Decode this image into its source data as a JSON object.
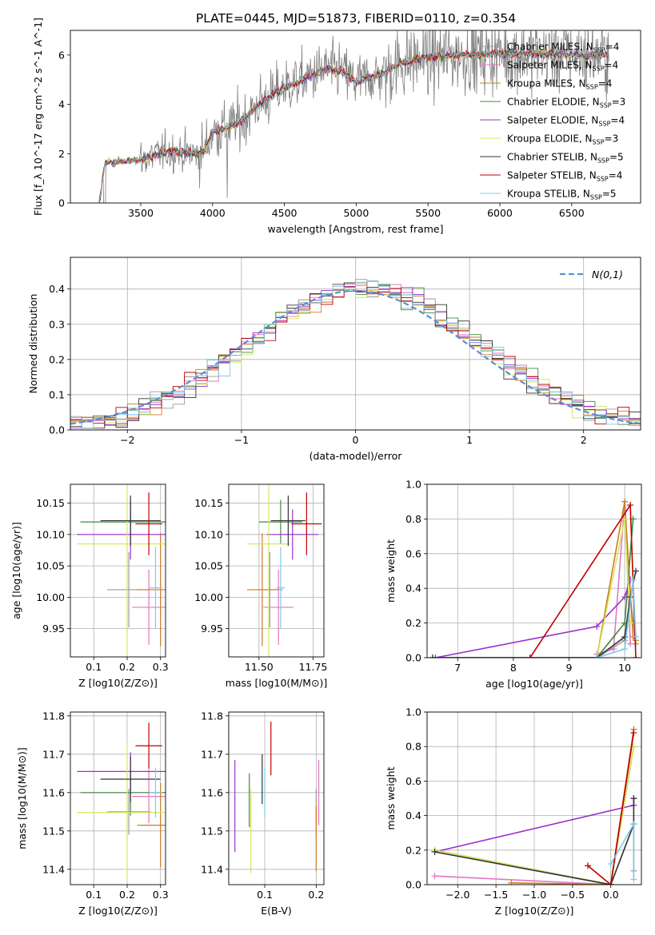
{
  "figure": {
    "title": "PLATE=0445, MJD=51873, FIBERID=0110, z=0.354"
  },
  "colors": {
    "grid": "#b0b0b0",
    "observed_spectrum": "#808080",
    "normal_curve": "#5b8ed6"
  },
  "models": [
    {
      "name": "Chabrier MILES",
      "nssp": "4",
      "color": "#9a9a9a"
    },
    {
      "name": "Salpeter MILES",
      "nssp": "4",
      "color": "#e377c2"
    },
    {
      "name": "Kroupa MILES",
      "nssp": "4",
      "color": "#d07a1e"
    },
    {
      "name": "Chabrier ELODIE",
      "nssp": "3",
      "color": "#3d8a3d"
    },
    {
      "name": "Salpeter ELODIE",
      "nssp": "4",
      "color": "#9b30c8"
    },
    {
      "name": "Kroupa ELODIE",
      "nssp": "3",
      "color": "#d4e85a"
    },
    {
      "name": "Chabrier STELIB",
      "nssp": "5",
      "color": "#333333"
    },
    {
      "name": "Salpeter STELIB",
      "nssp": "4",
      "color": "#c00000"
    },
    {
      "name": "Kroupa STELIB",
      "nssp": "5",
      "color": "#7fc8e8"
    }
  ],
  "chart_data": [
    {
      "id": "spectrum",
      "type": "line",
      "xlabel": "wavelength [Angstrom, rest frame]",
      "ylabel": "Flux [f_λ 10^-17 erg cm^-2 s^-1 A^-1]",
      "xlim": [
        3010,
        6980
      ],
      "ylim": [
        0,
        7
      ],
      "xticks": [
        "3500",
        "4000",
        "4500",
        "5000",
        "5500",
        "6000",
        "6500"
      ],
      "yticks": [
        "0",
        "2",
        "4",
        "6"
      ],
      "grid": false,
      "legend": "top-right",
      "continuum_anchors": {
        "x": [
          3210,
          3250,
          3300,
          3400,
          3500,
          3600,
          3700,
          3800,
          3900,
          3950,
          4000,
          4100,
          4200,
          4300,
          4400,
          4500,
          4600,
          4700,
          4800,
          4900,
          5000,
          5100,
          5200,
          5300,
          5400,
          5500,
          5600,
          5700,
          5800,
          5900,
          6000,
          6200,
          6400,
          6600,
          6750
        ],
        "y": [
          0.0,
          1.6,
          1.65,
          1.7,
          1.75,
          1.95,
          2.1,
          2.05,
          2.0,
          2.2,
          2.9,
          3.05,
          3.3,
          3.9,
          4.3,
          4.7,
          4.9,
          5.2,
          5.45,
          5.35,
          4.9,
          5.1,
          5.3,
          5.65,
          5.8,
          5.9,
          5.95,
          6.0,
          6.0,
          6.05,
          6.05,
          6.05,
          6.05,
          6.0,
          6.0
        ]
      }
    },
    {
      "id": "residuals",
      "type": "line",
      "xlabel": "(data-model)/error",
      "ylabel": "Normed distribution",
      "xlim": [
        -2.5,
        2.5
      ],
      "ylim": [
        0,
        0.49
      ],
      "xticks": [
        "−2",
        "−1",
        "0",
        "1",
        "2"
      ],
      "yticks": [
        "0.0",
        "0.1",
        "0.2",
        "0.3",
        "0.4"
      ],
      "grid": true,
      "legend": "top-right",
      "legend_label": "N(0,1)",
      "series": [
        {
          "name": "N(0,1)",
          "mean": 0,
          "sigma": 1,
          "style": "dashed"
        }
      ],
      "bin_width": 0.1
    },
    {
      "id": "age_vs_Z",
      "type": "scatter",
      "xlabel": "Z [log10(Z/Z⊙)]",
      "ylabel": "age [log10(age/yr)]",
      "xlim": [
        0.03,
        0.315
      ],
      "ylim": [
        9.905,
        10.18
      ],
      "xticks": [
        "0.1",
        "0.2",
        "0.3"
      ],
      "yticks": [
        "9.95",
        "10.00",
        "10.05",
        "10.10",
        "10.15"
      ],
      "grid": true,
      "points": [
        {
          "model": "Chabrier MILES",
          "x": 0.205,
          "y": 10.012,
          "xerr": 0.065,
          "yerr": 0.06
        },
        {
          "model": "Salpeter MILES",
          "x": 0.265,
          "y": 9.984,
          "xerr": 0.05,
          "yerr": 0.06
        },
        {
          "model": "Kroupa MILES",
          "x": 0.3,
          "y": 10.012,
          "xerr": 0.07,
          "yerr": 0.09
        },
        {
          "model": "Chabrier ELODIE",
          "x": 0.21,
          "y": 10.12,
          "xerr": 0.15,
          "yerr": 0.035
        },
        {
          "model": "Salpeter ELODIE",
          "x": 0.21,
          "y": 10.1,
          "xerr": 0.16,
          "yerr": 0.04
        },
        {
          "model": "Kroupa ELODIE",
          "x": 0.2,
          "y": 10.085,
          "xerr": 0.15,
          "yerr": 0.18
        },
        {
          "model": "Chabrier STELIB",
          "x": 0.21,
          "y": 10.122,
          "xerr": 0.09,
          "yerr": 0.04
        },
        {
          "model": "Salpeter STELIB",
          "x": 0.265,
          "y": 10.117,
          "xerr": 0.04,
          "yerr": 0.05
        },
        {
          "model": "Kroupa STELIB",
          "x": 0.285,
          "y": 10.015,
          "xerr": 0.02,
          "yerr": 0.065
        }
      ]
    },
    {
      "id": "age_vs_mass",
      "type": "scatter",
      "xlabel": "mass [log10(M/M⊙)]",
      "ylabel": "",
      "xlim": [
        11.36,
        11.8
      ],
      "ylim": [
        9.905,
        10.18
      ],
      "xticks": [
        "11.50",
        "11.75"
      ],
      "yticks": [
        "9.95",
        "10.00",
        "10.05",
        "10.10",
        "10.15"
      ],
      "grid": true,
      "points": [
        {
          "model": "Chabrier MILES",
          "x": 11.55,
          "y": 10.012,
          "xerr": 0.06,
          "yerr": 0.06
        },
        {
          "model": "Salpeter MILES",
          "x": 11.59,
          "y": 9.984,
          "xerr": 0.07,
          "yerr": 0.06
        },
        {
          "model": "Kroupa MILES",
          "x": 11.515,
          "y": 10.012,
          "xerr": 0.07,
          "yerr": 0.09
        },
        {
          "model": "Chabrier ELODIE",
          "x": 11.6,
          "y": 10.12,
          "xerr": 0.1,
          "yerr": 0.035
        },
        {
          "model": "Salpeter ELODIE",
          "x": 11.655,
          "y": 10.1,
          "xerr": 0.12,
          "yerr": 0.04
        },
        {
          "model": "Kroupa ELODIE",
          "x": 11.545,
          "y": 10.085,
          "xerr": 0.1,
          "yerr": 0.18
        },
        {
          "model": "Chabrier STELIB",
          "x": 11.635,
          "y": 10.122,
          "xerr": 0.08,
          "yerr": 0.04
        },
        {
          "model": "Salpeter STELIB",
          "x": 11.72,
          "y": 10.117,
          "xerr": 0.07,
          "yerr": 0.05
        },
        {
          "model": "Kroupa STELIB",
          "x": 11.6,
          "y": 10.015,
          "xerr": 0.02,
          "yerr": 0.065
        }
      ]
    },
    {
      "id": "weight_vs_age",
      "type": "line",
      "xlabel": "age [log10(age/yr)]",
      "ylabel": "mass weight",
      "xlim": [
        6.45,
        10.3
      ],
      "ylim": [
        0,
        1
      ],
      "xticks": [
        "7",
        "8",
        "9",
        "10"
      ],
      "yticks": [
        "0.0",
        "0.2",
        "0.4",
        "0.6",
        "0.8",
        "1.0"
      ],
      "grid": true,
      "series": [
        {
          "name": "Chabrier MILES",
          "x": [
            9.5,
            10.0,
            10.1,
            10.2
          ],
          "y": [
            0.0,
            0.1,
            0.35,
            0.08
          ]
        },
        {
          "name": "Salpeter MILES",
          "x": [
            9.5,
            9.8,
            10.0,
            10.1
          ],
          "y": [
            0.02,
            0.05,
            0.9,
            0.08
          ]
        },
        {
          "name": "Kroupa MILES",
          "x": [
            9.5,
            10.0,
            10.15,
            10.2
          ],
          "y": [
            0.0,
            0.9,
            0.12,
            0.1
          ]
        },
        {
          "name": "Chabrier ELODIE",
          "x": [
            6.55,
            9.5,
            10.0,
            10.15
          ],
          "y": [
            0.0,
            0.0,
            0.2,
            0.8
          ]
        },
        {
          "name": "Salpeter ELODIE",
          "x": [
            6.6,
            9.5,
            10.0,
            10.1
          ],
          "y": [
            0.0,
            0.18,
            0.35,
            0.45
          ]
        },
        {
          "name": "Kroupa ELODIE",
          "x": [
            9.5,
            10.0,
            10.1
          ],
          "y": [
            0.0,
            0.8,
            0.2
          ]
        },
        {
          "name": "Chabrier STELIB",
          "x": [
            6.55,
            9.5,
            10.0,
            10.1,
            10.2
          ],
          "y": [
            0.0,
            0.0,
            0.12,
            0.35,
            0.5
          ]
        },
        {
          "name": "Salpeter STELIB",
          "x": [
            8.3,
            10.1,
            10.2
          ],
          "y": [
            0.0,
            0.88,
            0.0
          ]
        },
        {
          "name": "Kroupa STELIB",
          "x": [
            9.5,
            10.0,
            10.15,
            10.2
          ],
          "y": [
            0.0,
            0.05,
            0.45,
            0.12
          ]
        }
      ]
    },
    {
      "id": "mass_vs_Z",
      "type": "scatter",
      "xlabel": "Z [log10(Z/Z⊙)]",
      "ylabel": "mass [log10(M/M⊙)]",
      "xlim": [
        0.03,
        0.315
      ],
      "ylim": [
        11.36,
        11.81
      ],
      "xticks": [
        "0.1",
        "0.2",
        "0.3"
      ],
      "yticks": [
        "11.4",
        "11.5",
        "11.6",
        "11.7",
        "11.8"
      ],
      "grid": true,
      "points": [
        {
          "model": "Chabrier MILES",
          "x": 0.205,
          "y": 11.55,
          "xerr": 0.065,
          "yerr": 0.06
        },
        {
          "model": "Salpeter MILES",
          "x": 0.265,
          "y": 11.59,
          "xerr": 0.05,
          "yerr": 0.07
        },
        {
          "model": "Kroupa MILES",
          "x": 0.3,
          "y": 11.515,
          "xerr": 0.07,
          "yerr": 0.11
        },
        {
          "model": "Chabrier ELODIE",
          "x": 0.21,
          "y": 11.6,
          "xerr": 0.15,
          "yerr": 0.06
        },
        {
          "model": "Salpeter ELODIE",
          "x": 0.21,
          "y": 11.655,
          "xerr": 0.16,
          "yerr": 0.05
        },
        {
          "model": "Kroupa ELODIE",
          "x": 0.2,
          "y": 11.548,
          "xerr": 0.15,
          "yerr": 0.18
        },
        {
          "model": "Chabrier STELIB",
          "x": 0.21,
          "y": 11.635,
          "xerr": 0.09,
          "yerr": 0.06
        },
        {
          "model": "Salpeter STELIB",
          "x": 0.265,
          "y": 11.722,
          "xerr": 0.04,
          "yerr": 0.06
        },
        {
          "model": "Kroupa STELIB",
          "x": 0.285,
          "y": 11.6,
          "xerr": 0.02,
          "yerr": 0.065
        }
      ]
    },
    {
      "id": "mass_vs_EBV",
      "type": "scatter",
      "xlabel": "E(B-V)",
      "ylabel": "",
      "xlim": [
        0.03,
        0.215
      ],
      "ylim": [
        11.36,
        11.81
      ],
      "xticks": [
        "0.1",
        "0.2"
      ],
      "yticks": [
        "11.4",
        "11.5",
        "11.6",
        "11.7",
        "11.8"
      ],
      "grid": true,
      "points": [
        {
          "model": "Chabrier MILES",
          "x": 0.2,
          "y": 11.55,
          "xerr": 0,
          "yerr": 0.06
        },
        {
          "model": "Salpeter MILES",
          "x": 0.205,
          "y": 11.6,
          "xerr": 0,
          "yerr": 0.085
        },
        {
          "model": "Kroupa MILES",
          "x": 0.2,
          "y": 11.48,
          "xerr": 0,
          "yerr": 0.085
        },
        {
          "model": "Chabrier ELODIE",
          "x": 0.07,
          "y": 11.58,
          "xerr": 0,
          "yerr": 0.07
        },
        {
          "model": "Salpeter ELODIE",
          "x": 0.042,
          "y": 11.565,
          "xerr": 0,
          "yerr": 0.12
        },
        {
          "model": "Kroupa ELODIE",
          "x": 0.073,
          "y": 11.5,
          "xerr": 0,
          "yerr": 0.11
        },
        {
          "model": "Chabrier STELIB",
          "x": 0.095,
          "y": 11.635,
          "xerr": 0,
          "yerr": 0.065
        },
        {
          "model": "Salpeter STELIB",
          "x": 0.112,
          "y": 11.715,
          "xerr": 0,
          "yerr": 0.07
        },
        {
          "model": "Kroupa STELIB",
          "x": 0.1,
          "y": 11.6,
          "xerr": 0,
          "yerr": 0.065
        }
      ]
    },
    {
      "id": "weight_vs_Z",
      "type": "line",
      "xlabel": "Z [log10(Z/Z⊙)]",
      "ylabel": "mass weight",
      "xlim": [
        -2.4,
        0.4
      ],
      "ylim": [
        0,
        1
      ],
      "xticks": [
        "−2.0",
        "−1.5",
        "−1.0",
        "−0.5",
        "0.0"
      ],
      "yticks": [
        "0.0",
        "0.2",
        "0.4",
        "0.6",
        "0.8",
        "1.0"
      ],
      "grid": true,
      "series": [
        {
          "name": "Chabrier MILES",
          "x": [
            0.0,
            0.3,
            0.3
          ],
          "y": [
            0.0,
            0.35,
            0.08
          ]
        },
        {
          "name": "Salpeter MILES",
          "x": [
            -2.3,
            0.0,
            0.3
          ],
          "y": [
            0.05,
            0.0,
            0.9
          ]
        },
        {
          "name": "Kroupa MILES",
          "x": [
            -1.3,
            0.0,
            0.3
          ],
          "y": [
            0.01,
            0.0,
            0.9
          ]
        },
        {
          "name": "Chabrier ELODIE",
          "x": [
            -2.3,
            0.0,
            0.3
          ],
          "y": [
            0.2,
            0.0,
            0.8
          ]
        },
        {
          "name": "Salpeter ELODIE",
          "x": [
            -2.3,
            0.3,
            0.3
          ],
          "y": [
            0.19,
            0.46,
            0.5
          ]
        },
        {
          "name": "Kroupa ELODIE",
          "x": [
            -2.3,
            0.0,
            0.3
          ],
          "y": [
            0.2,
            0.0,
            0.8
          ]
        },
        {
          "name": "Chabrier STELIB",
          "x": [
            -2.3,
            0.0,
            0.3,
            0.3
          ],
          "y": [
            0.19,
            0.0,
            0.35,
            0.5
          ]
        },
        {
          "name": "Salpeter STELIB",
          "x": [
            -0.3,
            0.0,
            0.3
          ],
          "y": [
            0.11,
            0.0,
            0.88
          ]
        },
        {
          "name": "Kroupa STELIB",
          "x": [
            0.0,
            0.3,
            0.3
          ],
          "y": [
            0.12,
            0.35,
            0.03
          ]
        }
      ]
    }
  ]
}
